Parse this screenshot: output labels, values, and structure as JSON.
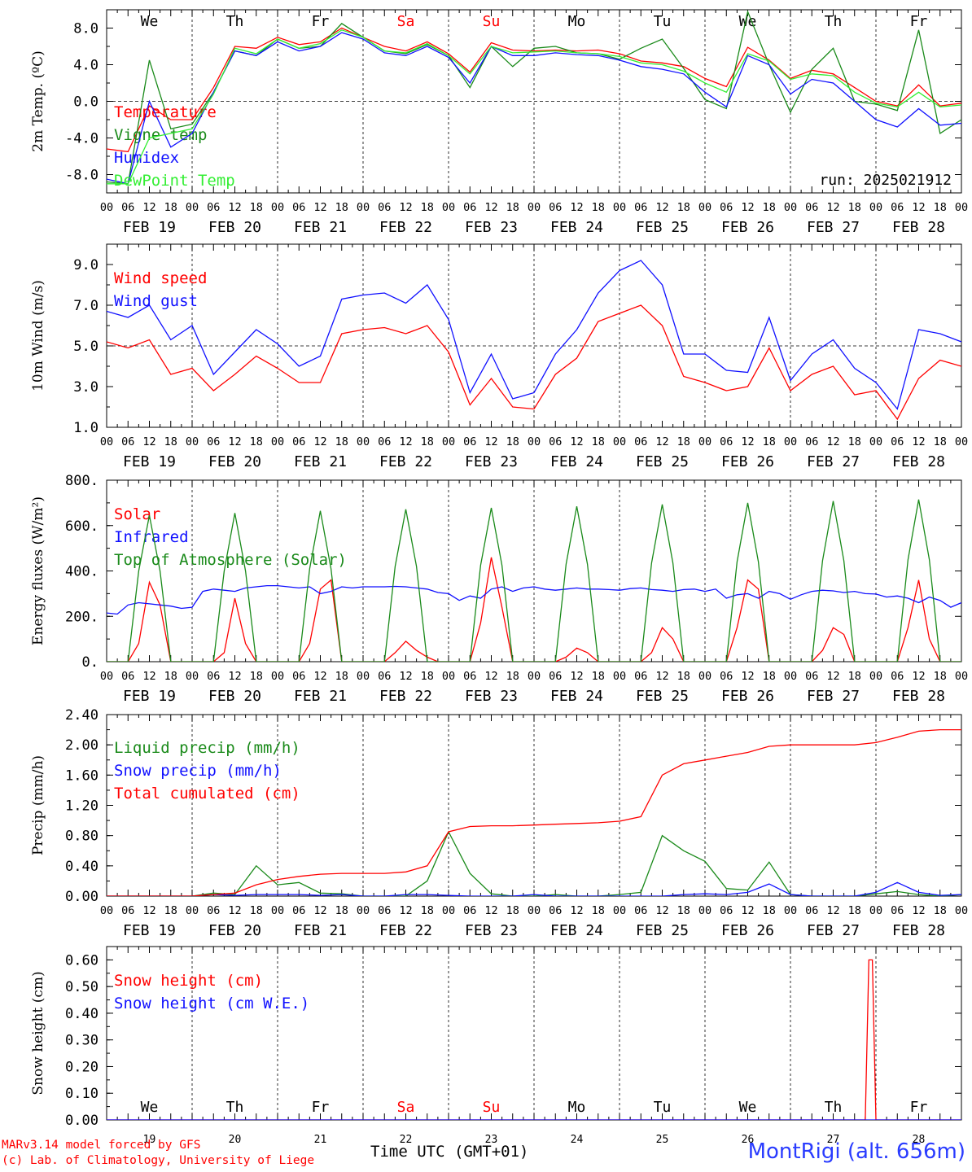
{
  "footer": {
    "credit_line1": "MARv3.14 model forced by GFS",
    "credit_line2": "(c) Lab. of Climatology, University of Liege",
    "xlabel": "Time UTC (GMT+01)",
    "station": "MontRigi (alt. 656m)"
  },
  "colors": {
    "red": "#ff0000",
    "green": "#1a8a1a",
    "blue": "#1010ff",
    "lightgreen": "#33ee33"
  },
  "time_axis": {
    "hour_ticks": [
      "00",
      "06",
      "12",
      "18"
    ],
    "end_tick": "00",
    "dates": [
      "FEB 19",
      "FEB 20",
      "FEB 21",
      "FEB 22",
      "FEB 23",
      "FEB 24",
      "FEB 25",
      "FEB 26",
      "FEB 27",
      "FEB 28"
    ],
    "weekdays": [
      "We",
      "Th",
      "Fr",
      "Sa",
      "Su",
      "Mo",
      "Tu",
      "We",
      "Th",
      "Fr"
    ],
    "weekend_index": [
      3,
      4
    ],
    "day_numbers": [
      "19",
      "20",
      "21",
      "22",
      "23",
      "24",
      "25",
      "26",
      "27",
      "28"
    ]
  },
  "chart_data": [
    {
      "type": "line",
      "ylabel": "2m Temp. (ºC)",
      "ylim": [
        -10,
        10
      ],
      "yticks": [
        "8.0",
        "4.0",
        "0.0",
        "-4.0",
        "-8.0"
      ],
      "ytick_values": [
        8,
        4,
        0,
        -4,
        -8
      ],
      "ref_line": 0,
      "annotation": "run: 2025021912",
      "x_hours": [
        0,
        6,
        12,
        18,
        24,
        30,
        36,
        42,
        48,
        54,
        60,
        66,
        72,
        78,
        84,
        90,
        96,
        102,
        108,
        114,
        120,
        126,
        132,
        138,
        144,
        150,
        156,
        162,
        168,
        174,
        180,
        186,
        192,
        198,
        204,
        210,
        216,
        222,
        228,
        234,
        240
      ],
      "series": [
        {
          "name": "Temperature",
          "color": "red",
          "values": [
            -5.2,
            -5.5,
            -0.5,
            -2.0,
            -2.0,
            1.5,
            6.0,
            5.8,
            7.0,
            6.2,
            6.5,
            8.0,
            7.0,
            6.0,
            5.5,
            6.5,
            5.2,
            3.2,
            6.4,
            5.6,
            5.5,
            5.6,
            5.5,
            5.6,
            5.2,
            4.4,
            4.2,
            3.8,
            2.5,
            1.6,
            5.9,
            4.5,
            2.5,
            3.4,
            3.0,
            1.5,
            0.0,
            -0.5,
            1.8,
            -0.5,
            -0.2
          ]
        },
        {
          "name": "Vigne temp",
          "color": "green",
          "values": [
            -8.8,
            -9.0,
            4.5,
            -3.0,
            -2.5,
            1.0,
            5.5,
            5.0,
            6.8,
            5.8,
            6.0,
            8.5,
            7.0,
            5.5,
            5.2,
            6.2,
            5.0,
            1.5,
            6.0,
            3.8,
            5.8,
            6.0,
            5.3,
            5.2,
            4.6,
            5.8,
            6.8,
            3.6,
            0.2,
            -0.8,
            9.8,
            4.0,
            -1.2,
            3.5,
            5.8,
            0.0,
            -0.3,
            -1.0,
            7.8,
            -3.5,
            -2.0
          ]
        },
        {
          "name": "Humidex",
          "color": "blue",
          "values": [
            -8.5,
            -9.0,
            0.0,
            -5.0,
            -3.5,
            1.0,
            5.5,
            5.0,
            6.5,
            5.5,
            6.0,
            7.5,
            6.8,
            5.3,
            5.0,
            6.0,
            4.8,
            2.0,
            6.0,
            5.0,
            5.0,
            5.3,
            5.1,
            5.0,
            4.5,
            3.8,
            3.5,
            3.0,
            1.0,
            -0.6,
            5.0,
            4.0,
            0.8,
            2.4,
            2.0,
            0.0,
            -2.0,
            -2.8,
            -0.8,
            -2.6,
            -2.4
          ]
        },
        {
          "name": "DewPoint Temp",
          "color": "lightgreen",
          "values": [
            -9.0,
            -9.0,
            -4.0,
            -3.5,
            -3.0,
            0.8,
            5.8,
            5.2,
            6.8,
            5.8,
            6.3,
            7.8,
            7.0,
            5.5,
            5.3,
            6.3,
            5.0,
            3.0,
            6.0,
            5.3,
            5.4,
            5.5,
            5.3,
            5.2,
            4.9,
            4.2,
            4.0,
            3.3,
            2.0,
            1.0,
            5.2,
            4.4,
            2.4,
            3.0,
            2.8,
            1.0,
            -0.2,
            -0.6,
            1.0,
            -0.6,
            -0.4
          ]
        }
      ]
    },
    {
      "type": "line",
      "ylabel": "10m Wind (m/s)",
      "ylim": [
        1,
        10
      ],
      "yticks": [
        "9.0",
        "7.0",
        "5.0",
        "3.0",
        "1.0"
      ],
      "ytick_values": [
        9,
        7,
        5,
        3,
        1
      ],
      "ref_line": 5,
      "x_hours": [
        0,
        6,
        12,
        18,
        24,
        30,
        36,
        42,
        48,
        54,
        60,
        66,
        72,
        78,
        84,
        90,
        96,
        102,
        108,
        114,
        120,
        126,
        132,
        138,
        144,
        150,
        156,
        162,
        168,
        174,
        180,
        186,
        192,
        198,
        204,
        210,
        216,
        222,
        228,
        234,
        240
      ],
      "series": [
        {
          "name": "Wind speed",
          "color": "red",
          "values": [
            5.2,
            4.9,
            5.3,
            3.6,
            3.9,
            2.8,
            3.6,
            4.5,
            3.9,
            3.2,
            3.2,
            5.6,
            5.8,
            5.9,
            5.6,
            6.0,
            4.7,
            2.1,
            3.4,
            2.0,
            1.9,
            3.6,
            4.4,
            6.2,
            6.6,
            7.0,
            6.0,
            3.5,
            3.2,
            2.8,
            3.0,
            4.9,
            2.8,
            3.6,
            4.0,
            2.6,
            2.8,
            1.4,
            3.4,
            4.3,
            4.0
          ]
        },
        {
          "name": "Wind gust",
          "color": "blue",
          "values": [
            6.7,
            6.4,
            7.0,
            5.3,
            6.0,
            3.6,
            4.7,
            5.8,
            5.1,
            4.0,
            4.5,
            7.3,
            7.5,
            7.6,
            7.1,
            8.0,
            6.3,
            2.7,
            4.6,
            2.4,
            2.7,
            4.6,
            5.8,
            7.6,
            8.7,
            9.2,
            8.0,
            4.6,
            4.6,
            3.8,
            3.7,
            6.4,
            3.3,
            4.6,
            5.3,
            3.9,
            3.2,
            1.9,
            5.8,
            5.6,
            5.2
          ]
        }
      ]
    },
    {
      "type": "line",
      "ylabel": "Energy fluxes (W/m²)",
      "ylim": [
        0,
        800
      ],
      "yticks": [
        "800.",
        "600.",
        "400.",
        "200.",
        "0."
      ],
      "ytick_values": [
        800,
        600,
        400,
        200,
        0
      ],
      "x_hours": [
        0,
        3,
        6,
        9,
        12,
        15,
        18,
        21,
        24,
        27,
        30,
        33,
        36,
        39,
        42,
        45,
        48,
        51,
        54,
        57,
        60,
        63,
        66,
        69,
        72,
        75,
        78,
        81,
        84,
        87,
        90,
        93,
        96,
        99,
        102,
        105,
        108,
        111,
        114,
        117,
        120,
        123,
        126,
        129,
        132,
        135,
        138,
        141,
        144,
        147,
        150,
        153,
        156,
        159,
        162,
        165,
        168,
        171,
        174,
        177,
        180,
        183,
        186,
        189,
        192,
        195,
        198,
        201,
        204,
        207,
        210,
        213,
        216,
        219,
        222,
        225,
        228,
        231,
        234,
        237,
        240
      ],
      "series": [
        {
          "name": "Solar",
          "color": "red",
          "values": [
            0,
            0,
            0,
            80,
            350,
            250,
            0,
            0,
            0,
            0,
            0,
            40,
            280,
            80,
            0,
            0,
            0,
            0,
            0,
            80,
            320,
            360,
            0,
            0,
            0,
            0,
            0,
            40,
            90,
            50,
            20,
            0,
            0,
            0,
            0,
            170,
            460,
            240,
            0,
            0,
            0,
            0,
            0,
            20,
            60,
            40,
            0,
            0,
            0,
            0,
            0,
            40,
            150,
            100,
            0,
            0,
            0,
            0,
            0,
            150,
            360,
            320,
            0,
            0,
            0,
            0,
            0,
            50,
            150,
            120,
            0,
            0,
            0,
            0,
            0,
            150,
            360,
            100,
            0,
            0,
            0
          ]
        },
        {
          "name": "Infrared",
          "color": "blue",
          "values": [
            215,
            210,
            250,
            260,
            255,
            250,
            245,
            235,
            240,
            310,
            320,
            315,
            310,
            325,
            330,
            335,
            335,
            330,
            325,
            330,
            300,
            310,
            330,
            325,
            330,
            330,
            330,
            332,
            330,
            325,
            320,
            305,
            300,
            270,
            290,
            280,
            320,
            330,
            310,
            325,
            330,
            320,
            315,
            320,
            325,
            320,
            320,
            318,
            315,
            322,
            325,
            318,
            315,
            310,
            318,
            320,
            310,
            320,
            280,
            295,
            300,
            280,
            310,
            300,
            275,
            295,
            310,
            315,
            312,
            305,
            310,
            300,
            298,
            285,
            290,
            280,
            260,
            285,
            270,
            240,
            260
          ]
        },
        {
          "name": "Top of Atmosphere (Solar)",
          "color": "green",
          "values": [
            0,
            0,
            0,
            400,
            645,
            400,
            0,
            0,
            0,
            0,
            0,
            400,
            655,
            400,
            0,
            0,
            0,
            0,
            0,
            410,
            665,
            410,
            0,
            0,
            0,
            0,
            0,
            420,
            672,
            420,
            0,
            0,
            0,
            0,
            0,
            425,
            678,
            425,
            0,
            0,
            0,
            0,
            0,
            430,
            685,
            430,
            0,
            0,
            0,
            0,
            0,
            435,
            693,
            435,
            0,
            0,
            0,
            0,
            0,
            440,
            700,
            440,
            0,
            0,
            0,
            0,
            0,
            445,
            708,
            445,
            0,
            0,
            0,
            0,
            0,
            450,
            715,
            450,
            0,
            0,
            0
          ]
        }
      ]
    },
    {
      "type": "line",
      "ylabel": "Precip (mm/h)",
      "ylim": [
        0,
        2.4
      ],
      "yticks": [
        "2.40",
        "2.00",
        "1.60",
        "1.20",
        "0.80",
        "0.40",
        "0.00"
      ],
      "ytick_values": [
        2.4,
        2.0,
        1.6,
        1.2,
        0.8,
        0.4,
        0.0
      ],
      "x_hours": [
        0,
        6,
        12,
        18,
        24,
        30,
        36,
        42,
        48,
        54,
        60,
        66,
        72,
        78,
        84,
        90,
        96,
        102,
        108,
        114,
        120,
        126,
        132,
        138,
        144,
        150,
        156,
        162,
        168,
        174,
        180,
        186,
        192,
        198,
        204,
        210,
        216,
        222,
        228,
        234,
        240
      ],
      "series": [
        {
          "name": "Liquid precip (mm/h)",
          "color": "green",
          "values": [
            0,
            0,
            0,
            0,
            0,
            0.04,
            0.02,
            0.4,
            0.15,
            0.18,
            0.04,
            0.03,
            0.0,
            0.0,
            0.0,
            0.2,
            0.85,
            0.3,
            0.03,
            0.0,
            0.0,
            0.02,
            0.0,
            0.0,
            0.02,
            0.05,
            0.8,
            0.6,
            0.46,
            0.1,
            0.08,
            0.45,
            0.02,
            0.0,
            0.0,
            0.0,
            0.03,
            0.06,
            0.02,
            0.0,
            0.02
          ]
        },
        {
          "name": "Snow precip (mm/h)",
          "color": "blue",
          "values": [
            0,
            0,
            0,
            0,
            0,
            0.02,
            0.01,
            0.02,
            0.02,
            0.02,
            0.01,
            0.02,
            0,
            0,
            0.02,
            0.02,
            0.01,
            0.0,
            0,
            0,
            0.02,
            0.0,
            0.0,
            0.0,
            0.0,
            0.0,
            0.0,
            0.02,
            0.03,
            0.02,
            0.05,
            0.16,
            0.02,
            0,
            0,
            0,
            0.05,
            0.18,
            0.05,
            0.01,
            0.02
          ]
        },
        {
          "name": "Total cumulated (cm)",
          "color": "red",
          "values": [
            0,
            0,
            0,
            0,
            0,
            0.02,
            0.04,
            0.15,
            0.22,
            0.26,
            0.29,
            0.3,
            0.3,
            0.3,
            0.32,
            0.4,
            0.85,
            0.92,
            0.93,
            0.93,
            0.94,
            0.95,
            0.96,
            0.97,
            0.99,
            1.05,
            1.6,
            1.75,
            1.8,
            1.85,
            1.9,
            1.98,
            2.0,
            2.0,
            2.0,
            2.0,
            2.03,
            2.1,
            2.18,
            2.2,
            2.2
          ]
        }
      ]
    },
    {
      "type": "line",
      "ylabel": "Snow height (cm)",
      "ylim": [
        0,
        0.65
      ],
      "yticks": [
        "0.60",
        "0.50",
        "0.40",
        "0.30",
        "0.20",
        "0.10",
        "0.00"
      ],
      "ytick_values": [
        0.6,
        0.5,
        0.4,
        0.3,
        0.2,
        0.1,
        0.0
      ],
      "x_hours": [
        0,
        213,
        214,
        215,
        216,
        240
      ],
      "series": [
        {
          "name": "Snow height (cm)",
          "color": "red",
          "values": [
            0,
            0,
            0.6,
            0.6,
            0,
            0
          ]
        },
        {
          "name": "Snow height (cm W.E.)",
          "color": "blue",
          "values": [
            0,
            0,
            0,
            0,
            0,
            0
          ]
        }
      ]
    }
  ]
}
